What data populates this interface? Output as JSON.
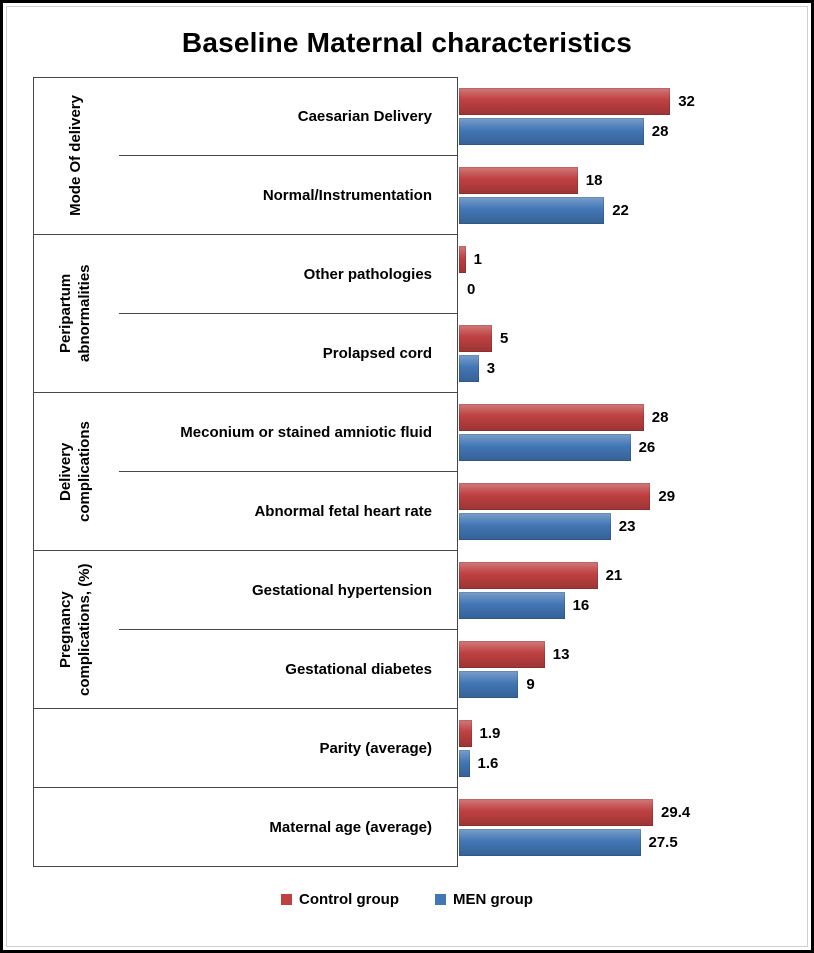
{
  "title": "Baseline Maternal characteristics",
  "colors": {
    "control": "#be4040",
    "men": "#4276b5",
    "axis_line": "#474747"
  },
  "chart_data": {
    "type": "bar",
    "orientation": "horizontal",
    "title": "Baseline Maternal characteristics",
    "xlim": [
      0,
      50
    ],
    "grid": false,
    "legend_position": "bottom",
    "series": [
      {
        "name": "Control group",
        "color": "#be4040"
      },
      {
        "name": "MEN group",
        "color": "#4276b5"
      }
    ],
    "groups": [
      {
        "label": "Mode Of delivery",
        "rows": [
          {
            "category": "Caesarian Delivery",
            "values": [
              32,
              28
            ],
            "labels": [
              "32",
              "28"
            ]
          },
          {
            "category": "Normal/Instrumentation",
            "values": [
              18,
              22
            ],
            "labels": [
              "18",
              "22"
            ]
          }
        ]
      },
      {
        "label": "Peripartum abnormalities",
        "rows": [
          {
            "category": "Other pathologies",
            "values": [
              1,
              0
            ],
            "labels": [
              "1",
              "0"
            ]
          },
          {
            "category": "Prolapsed cord",
            "values": [
              5,
              3
            ],
            "labels": [
              "5",
              "3"
            ]
          }
        ]
      },
      {
        "label": "Delivery complications",
        "rows": [
          {
            "category": "Meconium or stained amniotic fluid",
            "values": [
              28,
              26
            ],
            "labels": [
              "28",
              "26"
            ]
          },
          {
            "category": "Abnormal fetal heart rate",
            "values": [
              29,
              23
            ],
            "labels": [
              "29",
              "23"
            ]
          }
        ]
      },
      {
        "label": "Pregnancy complications, (%)",
        "rows": [
          {
            "category": "Gestational hypertension",
            "values": [
              21,
              16
            ],
            "labels": [
              "21",
              "16"
            ]
          },
          {
            "category": "Gestational diabetes",
            "values": [
              13,
              9
            ],
            "labels": [
              "13",
              "9"
            ]
          }
        ]
      },
      {
        "label": "",
        "rows": [
          {
            "category": "Parity (average)",
            "values": [
              1.9,
              1.6
            ],
            "labels": [
              "1.9",
              "1.6"
            ]
          }
        ]
      },
      {
        "label": "",
        "rows": [
          {
            "category": "Maternal age (average)",
            "values": [
              29.4,
              27.5
            ],
            "labels": [
              "29.4",
              "27.5"
            ]
          }
        ]
      }
    ]
  },
  "legend": {
    "items": [
      {
        "label": "Control group"
      },
      {
        "label": "MEN group"
      }
    ]
  }
}
